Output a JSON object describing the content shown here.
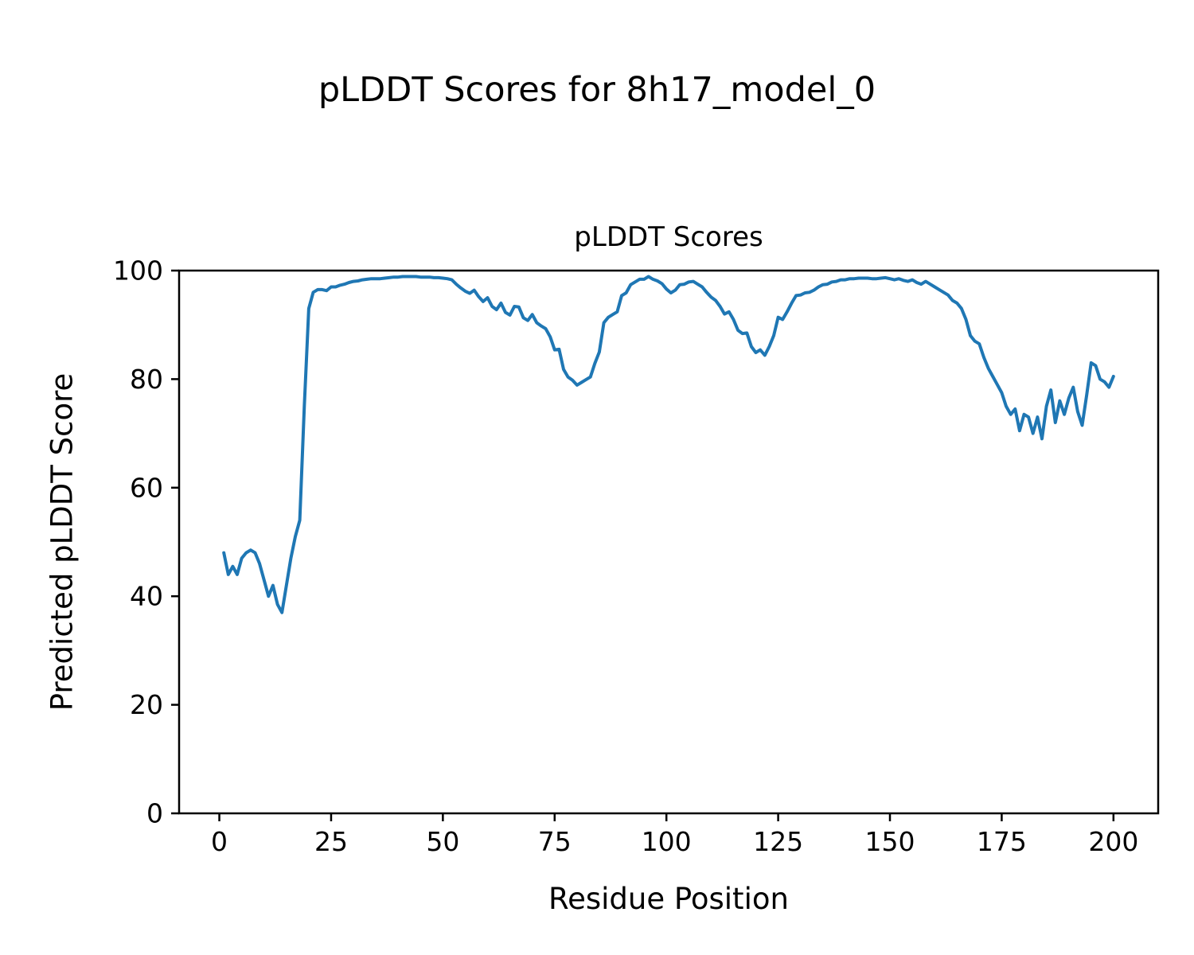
{
  "figure": {
    "title": "pLDDT Scores for 8h17_model_0"
  },
  "chart_data": {
    "type": "line",
    "title": "pLDDT Scores",
    "xlabel": "Residue Position",
    "ylabel": "Predicted pLDDT Score",
    "xlim": [
      -9,
      210
    ],
    "ylim": [
      0,
      100
    ],
    "xticks": [
      0,
      25,
      50,
      75,
      100,
      125,
      150,
      175,
      200
    ],
    "yticks": [
      0,
      20,
      40,
      60,
      80,
      100
    ],
    "grid": false,
    "legend": "none",
    "line_color": "#1f77b4",
    "line_width": 4,
    "series": [
      {
        "name": "pLDDT",
        "x_start": 1,
        "x_step": 1,
        "values": [
          48,
          44,
          45.5,
          44,
          47,
          48,
          48.5,
          48,
          46,
          43,
          40,
          42,
          38.5,
          37,
          42,
          47,
          51,
          54,
          75,
          93,
          96,
          96.5,
          96.5,
          96.3,
          97,
          97,
          97.3,
          97.5,
          97.8,
          98,
          98.1,
          98.3,
          98.4,
          98.5,
          98.5,
          98.5,
          98.6,
          98.7,
          98.8,
          98.8,
          98.9,
          98.9,
          98.9,
          98.9,
          98.8,
          98.8,
          98.8,
          98.7,
          98.7,
          98.6,
          98.5,
          98.3,
          97.5,
          96.8,
          96.2,
          95.8,
          96.4,
          95.2,
          94.3,
          95.0,
          93.4,
          92.8,
          94.0,
          92.3,
          91.8,
          93.4,
          93.3,
          91.3,
          90.8,
          91.9,
          90.4,
          89.8,
          89.3,
          87.8,
          85.4,
          85.5,
          81.8,
          80.4,
          79.8,
          78.9,
          79.4,
          79.9,
          80.4,
          82.9,
          85.0,
          90.4,
          91.4,
          91.9,
          92.4,
          95.4,
          95.9,
          97.4,
          97.9,
          98.4,
          98.4,
          98.9,
          98.4,
          98.1,
          97.6,
          96.6,
          95.9,
          96.4,
          97.4,
          97.5,
          97.9,
          98.0,
          97.5,
          97.0,
          96.0,
          95.1,
          94.5,
          93.4,
          92.0,
          92.4,
          91.0,
          89.0,
          88.4,
          88.5,
          86.0,
          84.9,
          85.4,
          84.4,
          86.0,
          88.0,
          91.4,
          91.0,
          92.4,
          94.0,
          95.4,
          95.5,
          95.9,
          96.0,
          96.4,
          97.0,
          97.4,
          97.5,
          97.9,
          98.0,
          98.3,
          98.3,
          98.5,
          98.5,
          98.6,
          98.6,
          98.6,
          98.5,
          98.5,
          98.6,
          98.7,
          98.5,
          98.3,
          98.5,
          98.2,
          98.0,
          98.3,
          97.8,
          97.5,
          98.0,
          97.5,
          97.0,
          96.5,
          96.0,
          95.5,
          94.5,
          94.0,
          93.0,
          91.0,
          88.0,
          87.0,
          86.5,
          84.0,
          82.0,
          80.5,
          79.0,
          77.5,
          75.0,
          73.5,
          74.5,
          70.5,
          73.5,
          73.0,
          70.0,
          73.0,
          69.0,
          75.0,
          78.0,
          72.0,
          76.0,
          73.5,
          76.5,
          78.5,
          74.0,
          71.5,
          77.0,
          83.0,
          82.5,
          80.0,
          79.5,
          78.5,
          80.5
        ]
      }
    ]
  }
}
